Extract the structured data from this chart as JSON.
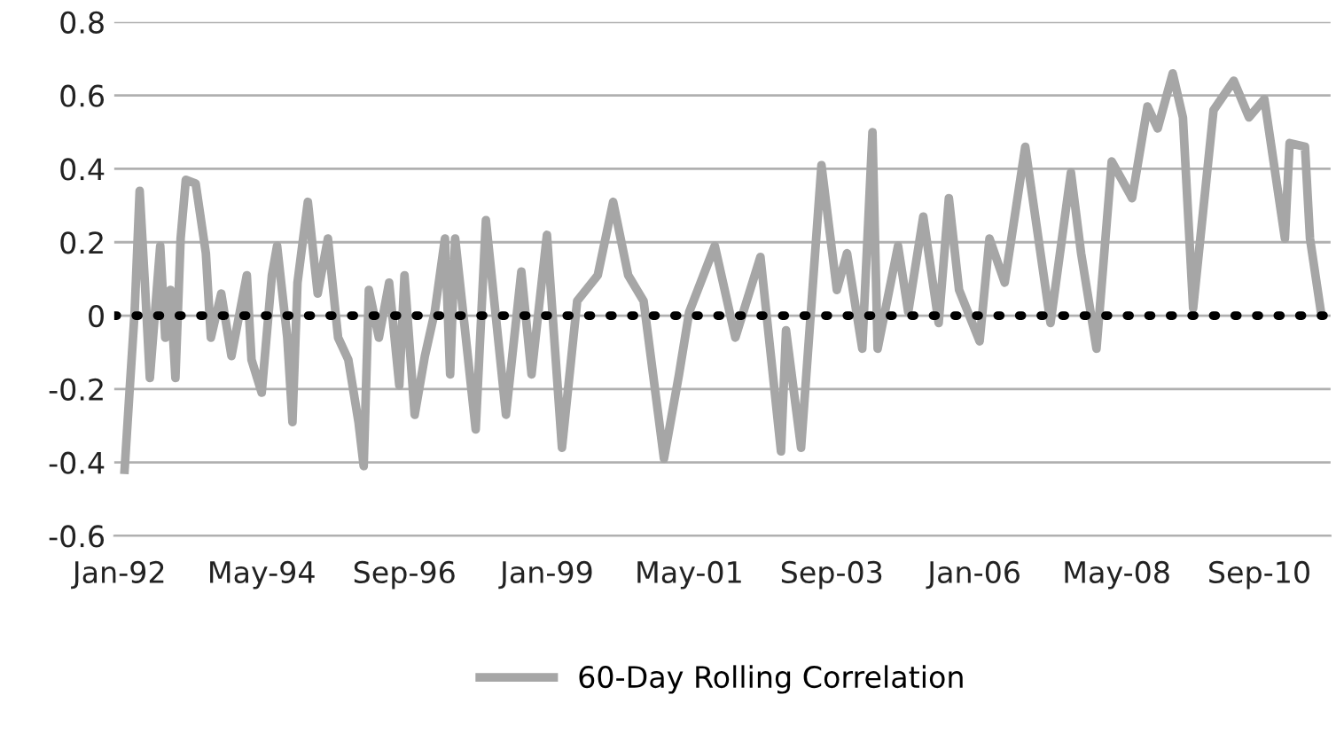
{
  "chart_data": {
    "type": "line",
    "x": [
      "1992-02",
      "1992-03",
      "1992-04",
      "1992-05",
      "1992-06",
      "1992-07",
      "1992-09",
      "1992-10",
      "1992-11",
      "1992-12",
      "1993-01",
      "1993-02",
      "1993-04",
      "1993-06",
      "1993-07",
      "1993-09",
      "1993-11",
      "1994-02",
      "1994-03",
      "1994-05",
      "1994-07",
      "1994-08",
      "1994-10",
      "1994-11",
      "1994-12",
      "1995-02",
      "1995-04",
      "1995-06",
      "1995-08",
      "1995-10",
      "1995-12",
      "1996-01",
      "1996-02",
      "1996-04",
      "1996-06",
      "1996-08",
      "1996-09",
      "1996-11",
      "1997-01",
      "1997-03",
      "1997-05",
      "1997-06",
      "1997-07",
      "1997-11",
      "1998-01",
      "1998-05",
      "1998-08",
      "1998-10",
      "1999-01",
      "1999-04",
      "1999-07",
      "1999-11",
      "2000-02",
      "2000-05",
      "2000-08",
      "2000-12",
      "2001-03",
      "2001-05",
      "2001-10",
      "2002-02",
      "2002-07",
      "2002-11",
      "2002-12",
      "2003-03",
      "2003-07",
      "2003-10",
      "2003-12",
      "2004-03",
      "2004-05",
      "2004-06",
      "2004-10",
      "2004-12",
      "2005-03",
      "2005-06",
      "2005-08",
      "2005-10",
      "2006-02",
      "2006-04",
      "2006-07",
      "2006-11",
      "2007-04",
      "2007-08",
      "2007-10",
      "2008-01",
      "2008-04",
      "2008-08",
      "2008-11",
      "2009-01",
      "2009-04",
      "2009-06",
      "2009-08",
      "2009-12",
      "2010-04",
      "2010-07",
      "2010-10",
      "2011-02",
      "2011-03",
      "2011-06",
      "2011-07",
      "2011-09"
    ],
    "series": [
      {
        "name": "60-Day Rolling Correlation",
        "color": "#a6a6a6",
        "values": [
          -0.42,
          -0.21,
          0.01,
          0.34,
          0.09,
          -0.17,
          0.19,
          -0.06,
          0.07,
          -0.17,
          0.21,
          0.37,
          0.36,
          0.17,
          -0.06,
          0.06,
          -0.11,
          0.11,
          -0.12,
          -0.21,
          0.11,
          0.19,
          -0.06,
          -0.29,
          0.09,
          0.31,
          0.06,
          0.21,
          -0.06,
          -0.12,
          -0.29,
          -0.41,
          0.07,
          -0.06,
          0.09,
          -0.19,
          0.11,
          -0.27,
          -0.11,
          0.01,
          0.21,
          -0.16,
          0.21,
          -0.31,
          0.26,
          -0.27,
          0.12,
          -0.16,
          0.22,
          -0.36,
          0.04,
          0.11,
          0.31,
          0.11,
          0.04,
          -0.39,
          -0.16,
          0.01,
          0.19,
          -0.06,
          0.16,
          -0.37,
          -0.04,
          -0.36,
          0.41,
          0.07,
          0.17,
          -0.09,
          0.5,
          -0.09,
          0.19,
          0.01,
          0.27,
          -0.02,
          0.32,
          0.07,
          -0.07,
          0.21,
          0.09,
          0.46,
          -0.02,
          0.39,
          0.17,
          -0.09,
          0.42,
          0.32,
          0.57,
          0.51,
          0.66,
          0.54,
          0.02,
          0.56,
          0.64,
          0.54,
          0.59,
          0.21,
          0.47,
          0.46,
          0.21,
          0.02
        ]
      }
    ],
    "xlim": [
      "1991-12",
      "2011-11"
    ],
    "xticks": [
      {
        "value": "1992-01",
        "label": "Jan-92"
      },
      {
        "value": "1994-05",
        "label": "May-94"
      },
      {
        "value": "1996-09",
        "label": "Sep-96"
      },
      {
        "value": "1999-01",
        "label": "Jan-99"
      },
      {
        "value": "2001-05",
        "label": "May-01"
      },
      {
        "value": "2003-09",
        "label": "Sep-03"
      },
      {
        "value": "2006-01",
        "label": "Jan-06"
      },
      {
        "value": "2008-05",
        "label": "May-08"
      },
      {
        "value": "2010-09",
        "label": "Sep-10"
      }
    ],
    "ylim": [
      -0.6,
      0.8
    ],
    "yticks": [
      -0.6,
      -0.4,
      -0.2,
      0,
      0.2,
      0.4,
      0.6,
      0.8
    ],
    "ref_lines": [
      {
        "axis": "y",
        "value": 0,
        "label": null,
        "color": "#000000",
        "line_style": "dotted"
      }
    ],
    "grid": "y",
    "legend": "bottom",
    "marker": "none",
    "line_style": "solid"
  }
}
